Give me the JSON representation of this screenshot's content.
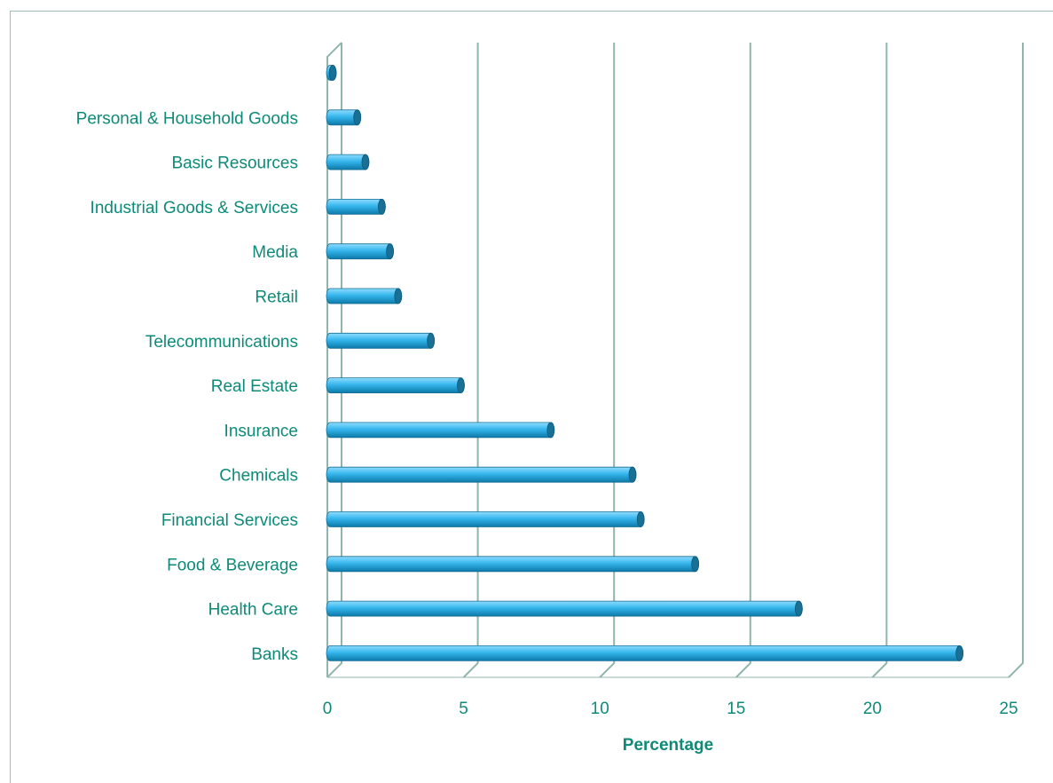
{
  "chart_data": {
    "type": "bar",
    "orientation": "horizontal",
    "categories": [
      "",
      "Personal & Household Goods",
      "Basic Resources",
      "Industrial Goods & Services",
      "Media",
      "Retail",
      "Telecommunications",
      "Real Estate",
      "Insurance",
      "Chemicals",
      "Financial Services",
      "Food & Beverage",
      "Health Care",
      "Banks"
    ],
    "values": [
      0.1,
      1.0,
      1.3,
      1.9,
      2.2,
      2.5,
      3.7,
      4.8,
      8.1,
      11.1,
      11.4,
      13.4,
      17.2,
      23.1
    ],
    "xlabel": "Percentage",
    "xlim": [
      0,
      25
    ],
    "xticks": [
      0,
      5,
      10,
      15,
      20,
      25
    ],
    "grid": "vertical",
    "colors": {
      "bar_top": "#8fdcff",
      "bar_mid": "#35b6ec",
      "bar_bottom": "#0c78a8",
      "bar_cap": "#1a6f95",
      "grid": "#8fb5ad",
      "text": "#0e8a78"
    }
  }
}
